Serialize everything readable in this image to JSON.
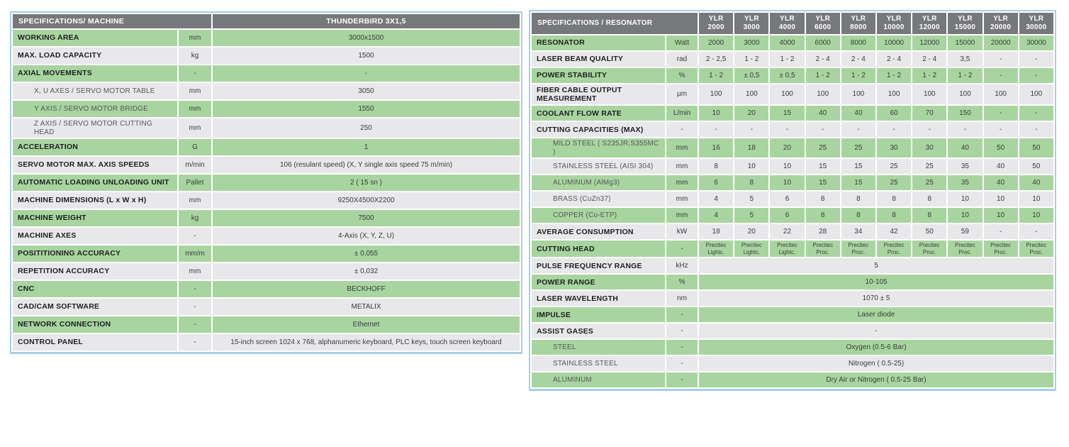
{
  "colors": {
    "header_bg": "#77787b",
    "green_row": "#a8d59f",
    "gray_row": "#e8e8ea",
    "table_border": "#a9cceb"
  },
  "machine_table": {
    "title": "SPECIFICATIONS/ MACHINE",
    "model": "THUNDERBIRD 3X1,5",
    "rows": [
      {
        "label": "WORKING AREA",
        "unit": "mm",
        "value": "3000x1500"
      },
      {
        "label": "MAX. LOAD CAPACITY",
        "unit": "kg",
        "value": "1500"
      },
      {
        "label": "AXIAL MOVEMENTS",
        "unit": "-",
        "value": "-"
      },
      {
        "label": "X, U AXES / SERVO MOTOR TABLE",
        "unit": "mm",
        "value": "3050",
        "sub": true
      },
      {
        "label": "Y AXIS / SERVO MOTOR BRIDGE",
        "unit": "mm",
        "value": "1550",
        "sub": true
      },
      {
        "label": "Z AXIS / SERVO MOTOR CUTTING HEAD",
        "unit": "mm",
        "value": "250",
        "sub": true
      },
      {
        "label": "ACCELERATION",
        "unit": "G",
        "value": "1"
      },
      {
        "label": "SERVO MOTOR MAX. AXIS SPEEDS",
        "unit": "m/min",
        "value": "106 (resulant speed) (X, Y single axis speed 75 m/min)"
      },
      {
        "label": "AUTOMATIC LOADING UNLOADING UNIT",
        "unit": "Pallet",
        "value": "2 ( 15 sn )"
      },
      {
        "label": "MACHINE DIMENSIONS (L x W x H)",
        "unit": "mm",
        "value": "9250X4500X2200"
      },
      {
        "label": "MACHINE WEIGHT",
        "unit": "kg",
        "value": "7500"
      },
      {
        "label": "MACHINE AXES",
        "unit": "-",
        "value": "4-Axis (X, Y, Z, U)"
      },
      {
        "label": "POSITITIONING ACCURACY",
        "unit": "mm/m",
        "value": "± 0,055"
      },
      {
        "label": "REPETITION ACCURACY",
        "unit": "mm",
        "value": "± 0,032"
      },
      {
        "label": "CNC",
        "unit": "-",
        "value": "BECKHOFF"
      },
      {
        "label": "CAD/CAM SOFTWARE",
        "unit": "-",
        "value": "METALIX"
      },
      {
        "label": "NETWORK CONNECTION",
        "unit": "-",
        "value": "Ethernet"
      },
      {
        "label": "CONTROL PANEL",
        "unit": "-",
        "value": "15-inch screen 1024 x 768, alphanumeric keyboard, PLC keys, touch screen keyboard"
      }
    ]
  },
  "resonator_table": {
    "title": "SPECIFICATIONS / RESONATOR",
    "models": [
      {
        "series": "YLR",
        "power": "2000"
      },
      {
        "series": "YLR",
        "power": "3000"
      },
      {
        "series": "YLR",
        "power": "4000"
      },
      {
        "series": "YLR",
        "power": "6000"
      },
      {
        "series": "YLR",
        "power": "8000"
      },
      {
        "series": "YLR",
        "power": "10000"
      },
      {
        "series": "YLR",
        "power": "12000"
      },
      {
        "series": "YLR",
        "power": "15000"
      },
      {
        "series": "YLR",
        "power": "20000"
      },
      {
        "series": "YLR",
        "power": "30000"
      }
    ],
    "rows": [
      {
        "label": "RESONATOR",
        "unit": "Watt",
        "values": [
          "2000",
          "3000",
          "4000",
          "6000",
          "8000",
          "10000",
          "12000",
          "15000",
          "20000",
          "30000"
        ]
      },
      {
        "label": "LASER BEAM QUALITY",
        "unit": "rad",
        "values": [
          "2 - 2,5",
          "1 - 2",
          "1 - 2",
          "2 - 4",
          "2 - 4",
          "2 - 4",
          "2 - 4",
          "3,5",
          "-",
          "-"
        ]
      },
      {
        "label": "POWER STABILITY",
        "unit": "%",
        "values": [
          "1 - 2",
          "± 0,5",
          "± 0,5",
          "1 - 2",
          "1 - 2",
          "1 - 2",
          "1 - 2",
          "1 - 2",
          "-",
          "-"
        ]
      },
      {
        "label": "FIBER CABLE OUTPUT MEASUREMENT",
        "unit": "µm",
        "values": [
          "100",
          "100",
          "100",
          "100",
          "100",
          "100",
          "100",
          "100",
          "100",
          "100"
        ]
      },
      {
        "label": "COOLANT FLOW RATE",
        "unit": "L/min",
        "values": [
          "10",
          "20",
          "15",
          "40",
          "40",
          "60",
          "70",
          "150",
          "-",
          "-"
        ]
      },
      {
        "label": "CUTTING CAPACITIES (MAX)",
        "unit": "-",
        "values": [
          "-",
          "-",
          "-",
          "-",
          "-",
          "-",
          "-",
          "-",
          "-",
          "-"
        ]
      },
      {
        "label": "MILD STEEL ( S235JR,S355MC )",
        "unit": "mm",
        "sub": true,
        "values": [
          "16",
          "18",
          "20",
          "25",
          "25",
          "30",
          "30",
          "40",
          "50",
          "50"
        ]
      },
      {
        "label": "STAINLESS STEEL (AISI 304)",
        "unit": "mm",
        "sub": true,
        "values": [
          "8",
          "10",
          "10",
          "15",
          "15",
          "25",
          "25",
          "35",
          "40",
          "50"
        ]
      },
      {
        "label": "ALUMINUM (AlMg3)",
        "unit": "mm",
        "sub": true,
        "values": [
          "6",
          "8",
          "10",
          "15",
          "15",
          "25",
          "25",
          "35",
          "40",
          "40"
        ]
      },
      {
        "label": "BRASS (CuZn37)",
        "unit": "mm",
        "sub": true,
        "values": [
          "4",
          "5",
          "6",
          "8",
          "8",
          "8",
          "8",
          "10",
          "10",
          "10"
        ]
      },
      {
        "label": "COPPER (Cu-ETP)",
        "unit": "mm",
        "sub": true,
        "values": [
          "4",
          "5",
          "6",
          "8",
          "8",
          "8",
          "8",
          "10",
          "10",
          "10"
        ]
      },
      {
        "label": "AVERAGE CONSUMPTION",
        "unit": "kW",
        "values": [
          "18",
          "20",
          "22",
          "28",
          "34",
          "42",
          "50",
          "59",
          "-",
          "-"
        ]
      },
      {
        "label": "CUTTING HEAD",
        "unit": "-",
        "values": [
          "Precitec Lightc.",
          "Precitec Lightc.",
          "Precitec Lightc.",
          "Precitec Proc.",
          "Precitec Proc.",
          "Precitec Proc.",
          "Precitec Proc.",
          "Precitec Proc.",
          "Precitec Proc.",
          "Precitec Proc."
        ]
      },
      {
        "label": "PULSE FREQUENCY RANGE",
        "unit": "kHz",
        "value": "5"
      },
      {
        "label": "POWER RANGE",
        "unit": "%",
        "value": "10-105"
      },
      {
        "label": "LASER WAVELENGTH",
        "unit": "nm",
        "value": "1070 ± 5"
      },
      {
        "label": "IMPULSE",
        "unit": "-",
        "value": "Laser diode"
      },
      {
        "label": "ASSIST GASES",
        "unit": "-",
        "value": "-"
      },
      {
        "label": "STEEL",
        "unit": "-",
        "sub": true,
        "value": "Oxygen (0.5-6 Bar)"
      },
      {
        "label": "STAINLESS STEEL",
        "unit": "-",
        "sub": true,
        "value": "Nitrogen ( 0.5-25)"
      },
      {
        "label": "ALUMINUM",
        "unit": "-",
        "sub": true,
        "value": "Dry Air or Nitrogen ( 0.5-25 Bar)"
      }
    ]
  }
}
